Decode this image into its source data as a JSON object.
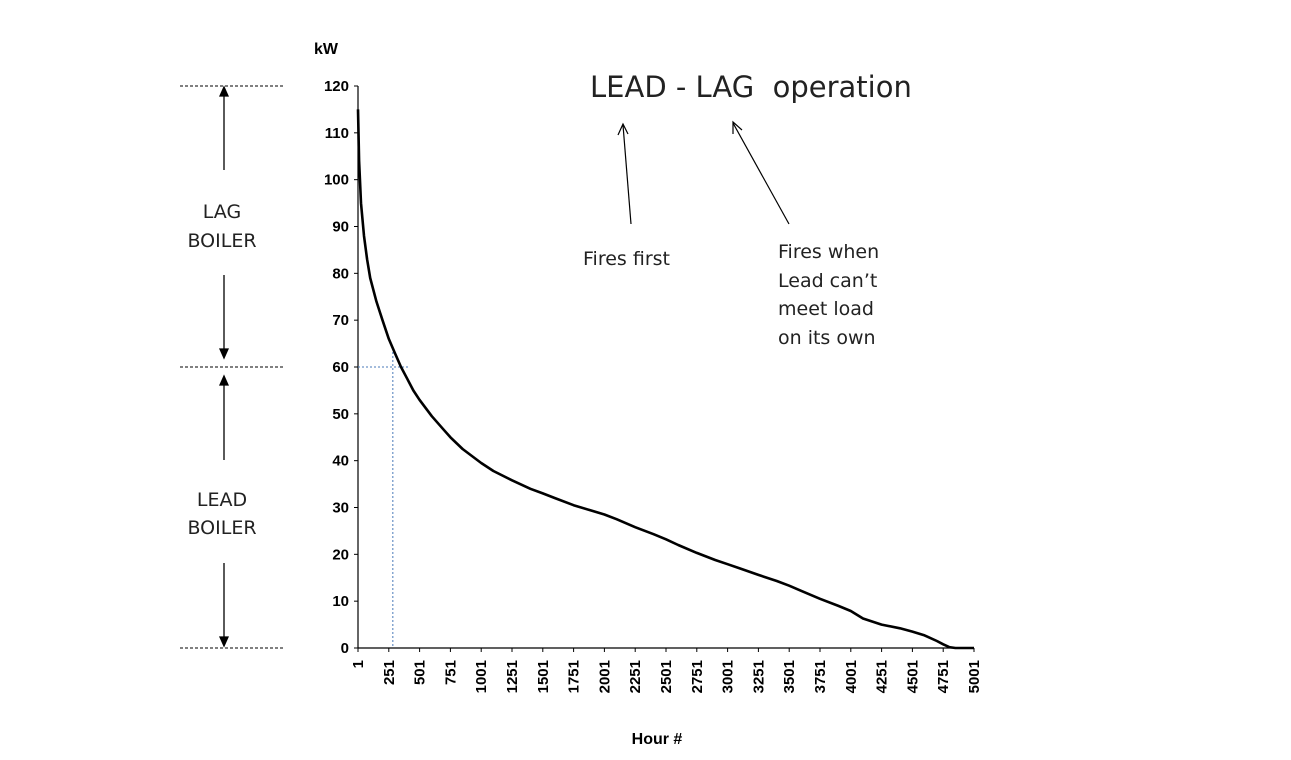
{
  "chart_data": {
    "type": "line",
    "title": "LEAD - LAG  operation",
    "ylabel": "kW",
    "xlabel": "Hour #",
    "ylim": [
      0,
      120
    ],
    "xlim": [
      1,
      5001
    ],
    "y_ticks": [
      "0",
      "10",
      "20",
      "30",
      "40",
      "50",
      "60",
      "70",
      "80",
      "90",
      "100",
      "110",
      "120"
    ],
    "x_ticks": [
      "1",
      "251",
      "501",
      "751",
      "1001",
      "1251",
      "1501",
      "1751",
      "2001",
      "2251",
      "2501",
      "2751",
      "3001",
      "3251",
      "3501",
      "3751",
      "4001",
      "4251",
      "4501",
      "4751",
      "5001"
    ],
    "grid": false,
    "series": [
      {
        "x": [
          1,
          10,
          25,
          50,
          75,
          100,
          150,
          200,
          251,
          300,
          350,
          400,
          450,
          500,
          600,
          700,
          751,
          850,
          1001,
          1100,
          1251,
          1400,
          1501,
          1600,
          1751,
          1900,
          2001,
          2100,
          2251,
          2400,
          2501,
          2600,
          2751,
          2900,
          3001,
          3100,
          3251,
          3400,
          3501,
          3600,
          3751,
          3900,
          4001,
          4100,
          4251,
          4400,
          4501,
          4600,
          4700,
          4751,
          4800,
          4850,
          4900,
          5001
        ],
        "y": [
          115,
          104,
          95,
          88,
          83,
          79,
          74,
          70,
          66,
          63,
          60,
          57.5,
          55,
          53,
          49.5,
          46.5,
          45,
          42.5,
          39.5,
          37.8,
          35.8,
          34,
          33,
          32,
          30.5,
          29.3,
          28.5,
          27.5,
          25.8,
          24.3,
          23.2,
          22,
          20.3,
          18.8,
          17.9,
          17,
          15.6,
          14.3,
          13.3,
          12.2,
          10.5,
          9,
          7.9,
          6.3,
          5,
          4.2,
          3.5,
          2.7,
          1.5,
          0.8,
          0.2,
          0,
          0,
          0
        ]
      }
    ],
    "threshold": {
      "x": 300,
      "y": 60
    },
    "annotations": {
      "lag_label": [
        "LAG",
        "BOILER"
      ],
      "lead_label": [
        "LEAD",
        "BOILER"
      ],
      "fires_first": "Fires first",
      "fires_when": [
        "Fires when",
        "Lead can’t",
        "meet load",
        "on its own"
      ]
    }
  }
}
